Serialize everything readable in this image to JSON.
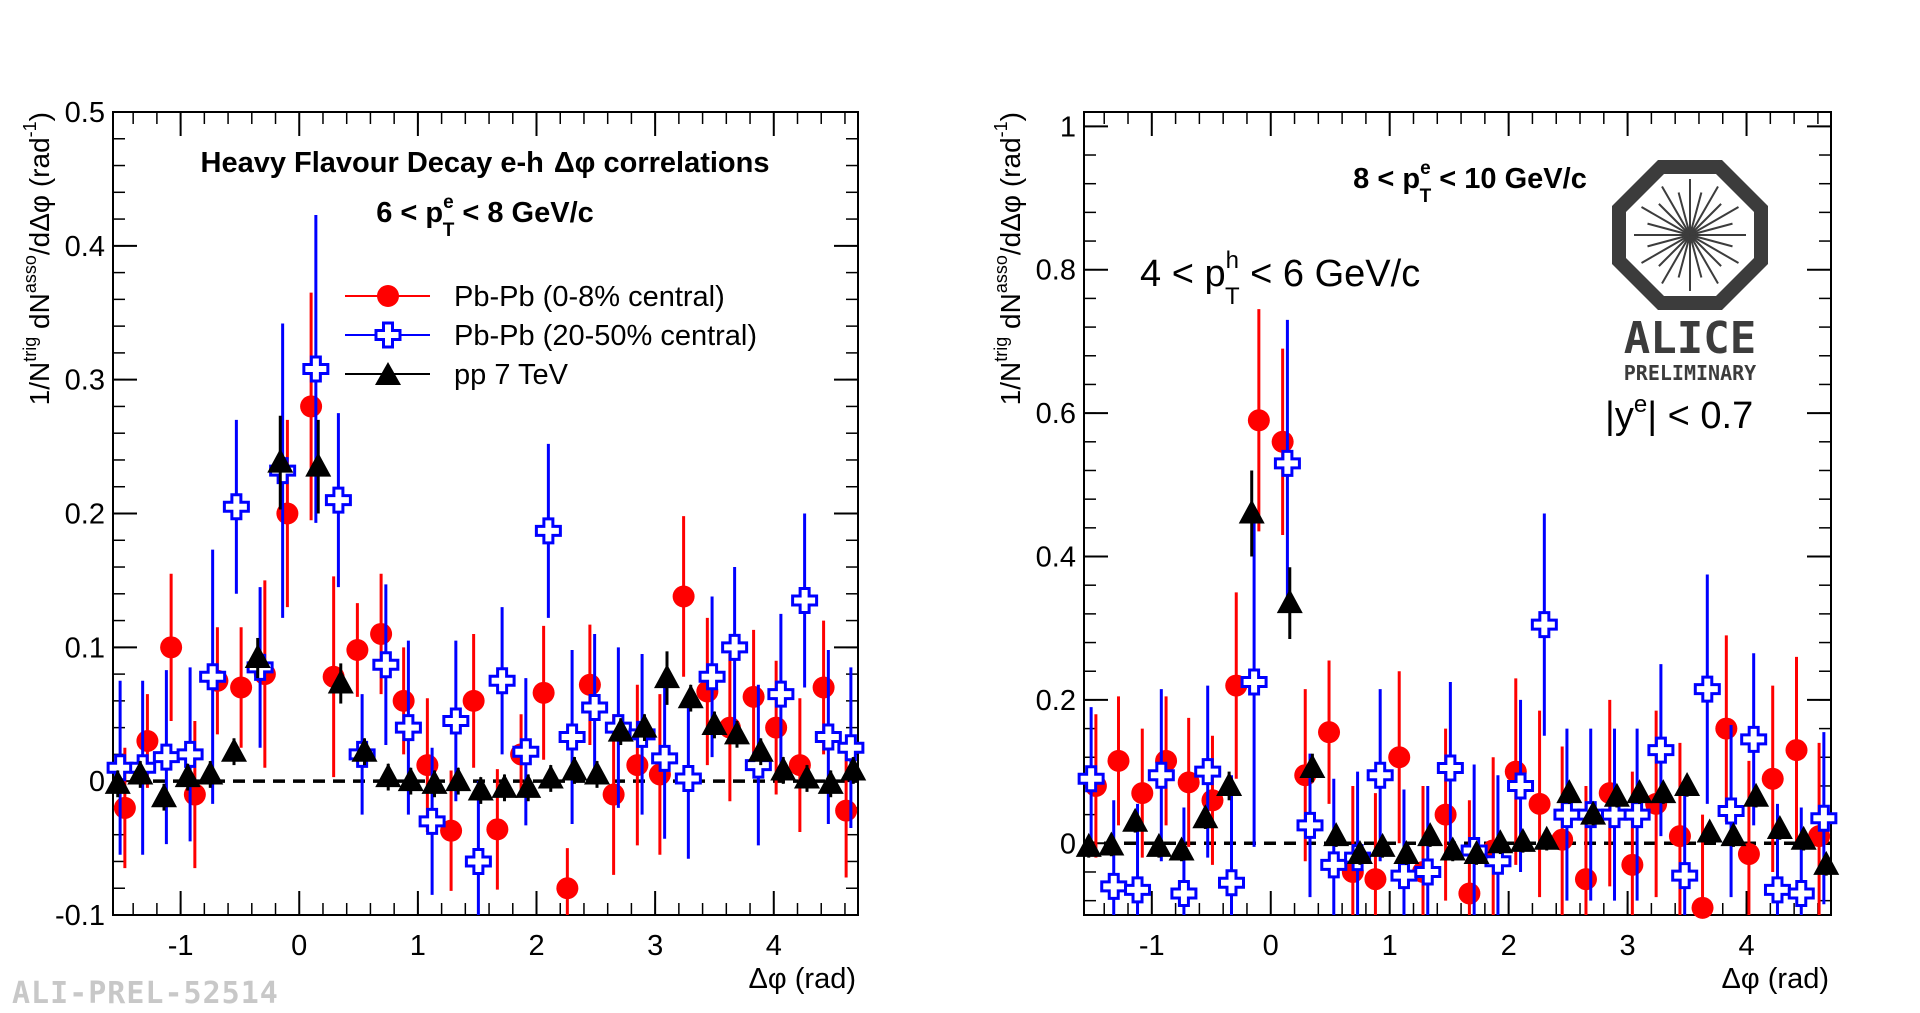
{
  "watermark": "ALI-PREL-52514",
  "colors": {
    "red": "#ff0000",
    "blue": "#0000ff",
    "black": "#000000"
  },
  "logo": {
    "name": "ALICE",
    "sub": "PRELIMINARY",
    "icon": "alice-logo-icon"
  },
  "chart_data": [
    {
      "type": "scatter",
      "title": "Heavy Flavour Decay e-h",
      "title_suffix": "Δφ correlations",
      "pt_e": {
        "pre": "6 < p",
        "sup": "e",
        "sub": "T",
        "post": " < 8 GeV/c"
      },
      "xlabel": "Δφ (rad)",
      "ylabel": {
        "a": "1/N",
        "a_sup": "trig",
        "b": " dN",
        "b_sup": "asso",
        "c": "/dΔφ (rad",
        "c_sup": "-1",
        "d": ")"
      },
      "xlim": [
        -1.57,
        4.71
      ],
      "ylim": [
        -0.1,
        0.5
      ],
      "xticks": [
        -1,
        0,
        1,
        2,
        3,
        4
      ],
      "yticks": [
        -0.1,
        0,
        0.1,
        0.2,
        0.3,
        0.4,
        0.5
      ],
      "ytick_labels": [
        "-0.1",
        "0",
        "0.1",
        "0.2",
        "0.3",
        "0.4",
        "0.5"
      ],
      "legend": [
        "Pb-Pb (0-8% central)",
        "Pb-Pb (20-50% central)",
        "pp 7 TeV"
      ],
      "baseline": 0,
      "series": [
        {
          "name": "Pb-Pb (0-8% central)",
          "marker": "circle",
          "x": [
            -1.47,
            -1.28,
            -1.08,
            -0.88,
            -0.69,
            -0.49,
            -0.29,
            -0.1,
            0.1,
            0.29,
            0.49,
            0.69,
            0.88,
            1.08,
            1.28,
            1.47,
            1.67,
            1.87,
            2.06,
            2.26,
            2.45,
            2.65,
            2.85,
            3.04,
            3.24,
            3.44,
            3.63,
            3.83,
            4.02,
            4.22,
            4.42,
            4.61
          ],
          "y": [
            -0.02,
            0.03,
            0.1,
            -0.01,
            0.075,
            0.07,
            0.08,
            0.2,
            0.28,
            0.078,
            0.098,
            0.11,
            0.06,
            0.012,
            -0.037,
            0.06,
            -0.036,
            0.02,
            0.066,
            -0.08,
            0.072,
            -0.01,
            0.012,
            0.005,
            0.138,
            0.067,
            0.04,
            0.063,
            0.04,
            0.012,
            0.07,
            -0.022
          ],
          "err": [
            0.045,
            0.035,
            0.055,
            0.055,
            0.04,
            0.045,
            0.07,
            0.07,
            0.085,
            0.075,
            0.035,
            0.045,
            0.04,
            0.05,
            0.045,
            0.05,
            0.045,
            0.03,
            0.05,
            0.03,
            0.045,
            0.06,
            0.06,
            0.06,
            0.06,
            0.055,
            0.055,
            0.05,
            0.05,
            0.05,
            0.05,
            0.05
          ]
        },
        {
          "name": "Pb-Pb (20-50% central)",
          "marker": "open-cross",
          "x": [
            -1.51,
            -1.32,
            -1.12,
            -0.92,
            -0.73,
            -0.53,
            -0.33,
            -0.14,
            0.14,
            0.33,
            0.53,
            0.73,
            0.92,
            1.12,
            1.32,
            1.51,
            1.71,
            1.91,
            2.1,
            2.3,
            2.49,
            2.69,
            2.89,
            3.08,
            3.28,
            3.48,
            3.67,
            3.87,
            4.06,
            4.26,
            4.46,
            4.65
          ],
          "y": [
            0.01,
            0.01,
            0.018,
            0.02,
            0.078,
            0.205,
            0.085,
            0.232,
            0.308,
            0.21,
            0.02,
            0.087,
            0.04,
            -0.03,
            0.045,
            -0.06,
            0.075,
            0.022,
            0.187,
            0.033,
            0.055,
            0.04,
            0.035,
            0.017,
            0.002,
            0.078,
            0.1,
            0.012,
            0.065,
            0.135,
            0.033,
            0.025
          ],
          "err": [
            0.065,
            0.065,
            0.065,
            0.065,
            0.095,
            0.065,
            0.06,
            0.11,
            0.115,
            0.065,
            0.045,
            0.06,
            0.065,
            0.055,
            0.06,
            0.06,
            0.055,
            0.055,
            0.065,
            0.065,
            0.055,
            0.06,
            0.06,
            0.06,
            0.06,
            0.06,
            0.06,
            0.06,
            0.06,
            0.065,
            0.065,
            0.06
          ]
        },
        {
          "name": "pp 7 TeV",
          "marker": "triangle",
          "x": [
            -1.53,
            -1.34,
            -1.14,
            -0.94,
            -0.75,
            -0.55,
            -0.35,
            -0.16,
            0.16,
            0.35,
            0.55,
            0.75,
            0.94,
            1.14,
            1.34,
            1.53,
            1.73,
            1.93,
            2.12,
            2.32,
            2.51,
            2.71,
            2.91,
            3.1,
            3.3,
            3.5,
            3.69,
            3.89,
            4.08,
            4.28,
            4.48,
            4.67
          ],
          "y": [
            -0.002,
            0.005,
            -0.012,
            0.003,
            0.005,
            0.022,
            0.092,
            0.238,
            0.235,
            0.073,
            0.022,
            0.003,
            0.0,
            -0.002,
            0.0,
            -0.007,
            -0.005,
            -0.005,
            0.002,
            0.008,
            0.005,
            0.037,
            0.04,
            0.077,
            0.062,
            0.042,
            0.035,
            0.022,
            0.008,
            0.002,
            -0.002,
            0.008
          ],
          "err": [
            0.01,
            0.01,
            0.01,
            0.01,
            0.01,
            0.01,
            0.015,
            0.035,
            0.035,
            0.015,
            0.01,
            0.01,
            0.01,
            0.01,
            0.01,
            0.01,
            0.01,
            0.01,
            0.01,
            0.01,
            0.01,
            0.01,
            0.01,
            0.02,
            0.01,
            0.01,
            0.01,
            0.01,
            0.01,
            0.01,
            0.01,
            0.01
          ]
        }
      ]
    },
    {
      "type": "scatter",
      "pt_e": {
        "pre": "8 < p",
        "sup": "e",
        "sub": "T",
        "post": " < 10 GeV/c"
      },
      "pt_h": {
        "pre": "4 < p",
        "sup": "h",
        "sub": "T",
        "post": " < 6 GeV/c"
      },
      "eta": {
        "pre": "|y",
        "sup": "e",
        "post": "| < 0.7"
      },
      "xlabel": "Δφ (rad)",
      "ylabel": {
        "a": "1/N",
        "a_sup": "trig",
        "b": " dN",
        "b_sup": "asso",
        "c": "/dΔφ (rad",
        "c_sup": "-1",
        "d": ")"
      },
      "xlim": [
        -1.57,
        4.71
      ],
      "ylim": [
        -0.1,
        1.02
      ],
      "xticks": [
        -1,
        0,
        1,
        2,
        3,
        4
      ],
      "yticks": [
        0,
        0.2,
        0.4,
        0.6,
        0.8,
        1
      ],
      "ytick_labels": [
        "0",
        "0.2",
        "0.4",
        "0.6",
        "0.8",
        "1"
      ],
      "baseline": 0,
      "series": [
        {
          "name": "Pb-Pb (0-8% central)",
          "marker": "circle",
          "x": [
            -1.47,
            -1.28,
            -1.08,
            -0.88,
            -0.69,
            -0.49,
            -0.29,
            -0.1,
            0.1,
            0.29,
            0.49,
            0.69,
            0.88,
            1.08,
            1.28,
            1.47,
            1.67,
            1.87,
            2.06,
            2.26,
            2.45,
            2.65,
            2.85,
            3.04,
            3.24,
            3.44,
            3.63,
            3.83,
            4.02,
            4.22,
            4.42,
            4.61
          ],
          "y": [
            0.08,
            0.115,
            0.07,
            0.115,
            0.085,
            0.06,
            0.22,
            0.59,
            0.56,
            0.095,
            0.155,
            -0.04,
            -0.05,
            0.12,
            -0.04,
            0.04,
            -0.07,
            -0.01,
            0.1,
            0.055,
            0.005,
            -0.05,
            0.07,
            -0.03,
            0.055,
            0.01,
            -0.09,
            0.16,
            -0.015,
            0.09,
            0.13,
            0.01
          ],
          "err": [
            0.1,
            0.09,
            0.09,
            0.09,
            0.09,
            0.09,
            0.13,
            0.155,
            0.13,
            0.12,
            0.1,
            0.12,
            0.12,
            0.12,
            0.12,
            0.12,
            0.13,
            0.13,
            0.13,
            0.13,
            0.13,
            0.13,
            0.13,
            0.13,
            0.13,
            0.13,
            0.13,
            0.13,
            0.13,
            0.13,
            0.13,
            0.13
          ]
        },
        {
          "name": "Pb-Pb (20-50% central)",
          "marker": "open-cross",
          "x": [
            -1.51,
            -1.32,
            -1.12,
            -0.92,
            -0.73,
            -0.53,
            -0.33,
            -0.14,
            0.14,
            0.33,
            0.53,
            0.73,
            0.92,
            1.12,
            1.32,
            1.51,
            1.71,
            1.91,
            2.1,
            2.3,
            2.49,
            2.69,
            2.89,
            3.08,
            3.28,
            3.48,
            3.67,
            3.87,
            4.06,
            4.26,
            4.46,
            4.65
          ],
          "y": [
            0.09,
            -0.06,
            -0.065,
            0.095,
            -0.07,
            0.1,
            -0.055,
            0.225,
            0.53,
            0.025,
            -0.03,
            -0.02,
            0.095,
            -0.045,
            -0.04,
            0.105,
            -0.01,
            -0.025,
            0.08,
            0.305,
            0.04,
            0.04,
            0.04,
            0.04,
            0.13,
            -0.045,
            0.215,
            0.045,
            0.145,
            -0.065,
            -0.07,
            0.035
          ],
          "err": [
            0.1,
            0.12,
            0.12,
            0.12,
            0.12,
            0.12,
            0.15,
            0.23,
            0.2,
            0.1,
            0.12,
            0.12,
            0.12,
            0.12,
            0.12,
            0.12,
            0.12,
            0.12,
            0.12,
            0.155,
            0.12,
            0.12,
            0.12,
            0.12,
            0.12,
            0.12,
            0.16,
            0.12,
            0.12,
            0.12,
            0.12,
            0.12
          ]
        },
        {
          "name": "pp 7 TeV",
          "marker": "triangle",
          "x": [
            -1.53,
            -1.34,
            -1.14,
            -0.94,
            -0.75,
            -0.55,
            -0.35,
            -0.16,
            0.16,
            0.35,
            0.55,
            0.75,
            0.94,
            1.14,
            1.34,
            1.53,
            1.73,
            1.93,
            2.12,
            2.32,
            2.51,
            2.71,
            2.91,
            3.1,
            3.3,
            3.5,
            3.69,
            3.89,
            4.08,
            4.28,
            4.48,
            4.67
          ],
          "y": [
            -0.005,
            -0.003,
            0.03,
            -0.005,
            -0.01,
            0.035,
            0.08,
            0.46,
            0.335,
            0.105,
            0.01,
            -0.015,
            -0.005,
            -0.015,
            0.01,
            -0.01,
            -0.015,
            0.0,
            0.002,
            0.005,
            0.07,
            0.04,
            0.065,
            0.07,
            0.07,
            0.08,
            0.015,
            0.01,
            0.065,
            0.02,
            0.005,
            -0.03
          ],
          "err": [
            0.015,
            0.015,
            0.015,
            0.015,
            0.015,
            0.015,
            0.02,
            0.06,
            0.05,
            0.02,
            0.015,
            0.015,
            0.015,
            0.015,
            0.015,
            0.015,
            0.015,
            0.015,
            0.015,
            0.015,
            0.015,
            0.015,
            0.015,
            0.015,
            0.015,
            0.015,
            0.015,
            0.015,
            0.015,
            0.015,
            0.015,
            0.015
          ]
        }
      ]
    }
  ]
}
